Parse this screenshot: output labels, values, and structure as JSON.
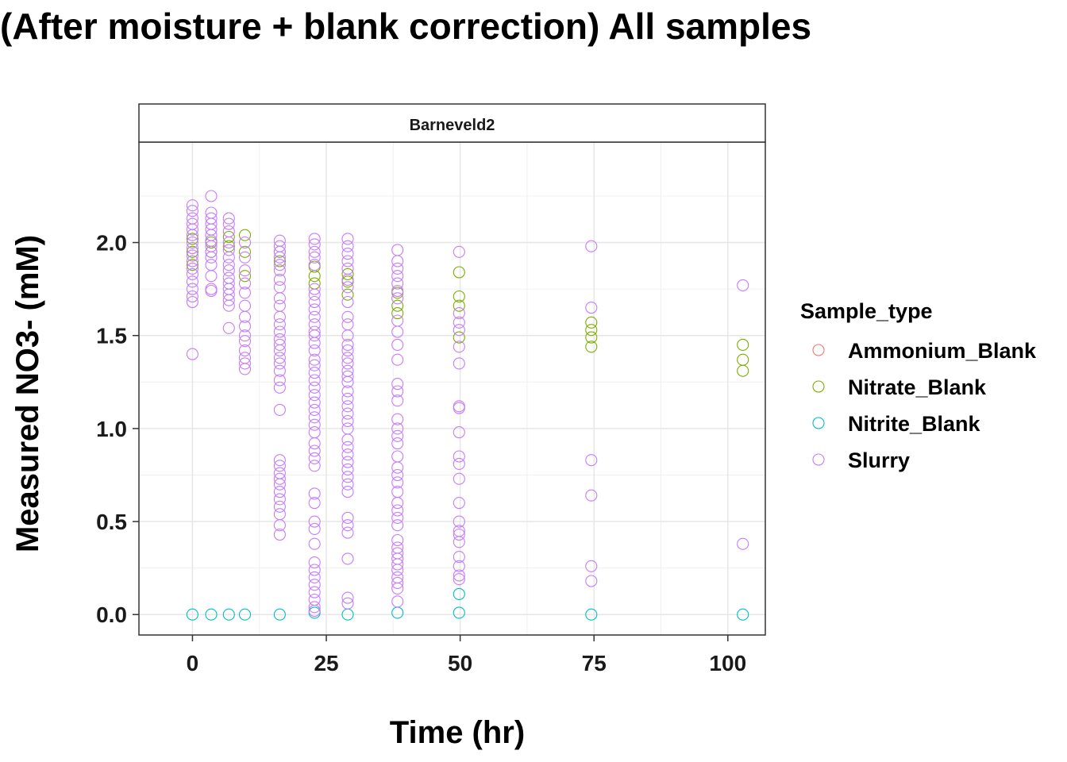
{
  "chart_data": {
    "type": "scatter",
    "title": "(After moisture + blank correction) All samples",
    "facet": "Barneveld2",
    "xlabel": "Time (hr)",
    "ylabel": "Measured NO3- (mM)",
    "xlim": [
      -10,
      107
    ],
    "ylim": [
      -0.11,
      2.54
    ],
    "xticks": [
      0,
      25,
      50,
      75,
      100
    ],
    "yticks": [
      0.0,
      0.5,
      1.0,
      1.5,
      2.0
    ],
    "xtick_labels": [
      "0",
      "25",
      "50",
      "75",
      "100"
    ],
    "ytick_labels": [
      "0.0",
      "0.5",
      "1.0",
      "1.5",
      "2.0"
    ],
    "grid": true,
    "legend_position": "right",
    "legend_title": "Sample_type",
    "series": [
      {
        "name": "Ammonium_Blank",
        "color": "#F8766D",
        "points": []
      },
      {
        "name": "Nitrate_Blank",
        "color": "#7CAE00",
        "points": [
          [
            0,
            1.88
          ],
          [
            0,
            1.95
          ],
          [
            0,
            2.02
          ],
          [
            3.5,
            1.95
          ],
          [
            3.5,
            2.0
          ],
          [
            6.8,
            1.98
          ],
          [
            6.8,
            2.03
          ],
          [
            9.8,
            2.04
          ],
          [
            9.8,
            1.95
          ],
          [
            9.8,
            1.82
          ],
          [
            16.3,
            1.9
          ],
          [
            16.3,
            1.95
          ],
          [
            22.8,
            1.82
          ],
          [
            22.8,
            1.78
          ],
          [
            22.8,
            1.87
          ],
          [
            29.0,
            1.83
          ],
          [
            29.0,
            1.79
          ],
          [
            29.0,
            1.72
          ],
          [
            38.3,
            1.73
          ],
          [
            38.3,
            1.66
          ],
          [
            38.3,
            1.62
          ],
          [
            49.8,
            1.84
          ],
          [
            49.8,
            1.71
          ],
          [
            49.8,
            1.66
          ],
          [
            49.8,
            1.49
          ],
          [
            74.5,
            1.57
          ],
          [
            74.5,
            1.53
          ],
          [
            74.5,
            1.49
          ],
          [
            74.5,
            1.44
          ],
          [
            102.8,
            1.45
          ],
          [
            102.8,
            1.37
          ],
          [
            102.8,
            1.31
          ]
        ]
      },
      {
        "name": "Nitrite_Blank",
        "color": "#00BFC4",
        "points": [
          [
            0,
            0.0
          ],
          [
            3.5,
            0.0
          ],
          [
            6.8,
            0.0
          ],
          [
            9.8,
            0.0
          ],
          [
            16.3,
            0.0
          ],
          [
            22.8,
            0.01
          ],
          [
            29.0,
            0.0
          ],
          [
            38.3,
            0.01
          ],
          [
            49.8,
            0.11
          ],
          [
            49.8,
            0.01
          ],
          [
            74.5,
            0.0
          ],
          [
            102.8,
            0.0
          ]
        ]
      },
      {
        "name": "Slurry",
        "color": "#C77CFF",
        "points": [
          [
            0,
            2.2
          ],
          [
            0,
            2.17
          ],
          [
            0,
            2.13
          ],
          [
            0,
            2.1
          ],
          [
            0,
            2.07
          ],
          [
            0,
            2.04
          ],
          [
            0,
            2.0
          ],
          [
            0,
            1.97
          ],
          [
            0,
            1.93
          ],
          [
            0,
            1.9
          ],
          [
            0,
            1.86
          ],
          [
            0,
            1.83
          ],
          [
            0,
            1.79
          ],
          [
            0,
            1.75
          ],
          [
            0,
            1.71
          ],
          [
            0,
            1.68
          ],
          [
            0,
            1.4
          ],
          [
            3.5,
            2.25
          ],
          [
            3.5,
            2.16
          ],
          [
            3.5,
            2.13
          ],
          [
            3.5,
            2.1
          ],
          [
            3.5,
            2.07
          ],
          [
            3.5,
            2.04
          ],
          [
            3.5,
            2.01
          ],
          [
            3.5,
            1.98
          ],
          [
            3.5,
            1.95
          ],
          [
            3.5,
            1.92
          ],
          [
            3.5,
            1.88
          ],
          [
            3.5,
            1.82
          ],
          [
            3.5,
            1.75
          ],
          [
            3.5,
            1.74
          ],
          [
            6.8,
            2.13
          ],
          [
            6.8,
            2.1
          ],
          [
            6.8,
            2.06
          ],
          [
            6.8,
            2.0
          ],
          [
            6.8,
            1.96
          ],
          [
            6.8,
            1.92
          ],
          [
            6.8,
            1.88
          ],
          [
            6.8,
            1.85
          ],
          [
            6.8,
            1.81
          ],
          [
            6.8,
            1.78
          ],
          [
            6.8,
            1.75
          ],
          [
            6.8,
            1.72
          ],
          [
            6.8,
            1.69
          ],
          [
            6.8,
            1.66
          ],
          [
            6.8,
            1.54
          ],
          [
            9.8,
            2.0
          ],
          [
            9.8,
            1.92
          ],
          [
            9.8,
            1.85
          ],
          [
            9.8,
            1.78
          ],
          [
            9.8,
            1.73
          ],
          [
            9.8,
            1.66
          ],
          [
            9.8,
            1.6
          ],
          [
            9.8,
            1.55
          ],
          [
            9.8,
            1.5
          ],
          [
            9.8,
            1.47
          ],
          [
            9.8,
            1.42
          ],
          [
            9.8,
            1.38
          ],
          [
            9.8,
            1.35
          ],
          [
            9.8,
            1.32
          ],
          [
            16.3,
            2.01
          ],
          [
            16.3,
            1.98
          ],
          [
            16.3,
            1.95
          ],
          [
            16.3,
            1.92
          ],
          [
            16.3,
            1.88
          ],
          [
            16.3,
            1.85
          ],
          [
            16.3,
            1.8
          ],
          [
            16.3,
            1.76
          ],
          [
            16.3,
            1.7
          ],
          [
            16.3,
            1.66
          ],
          [
            16.3,
            1.6
          ],
          [
            16.3,
            1.56
          ],
          [
            16.3,
            1.52
          ],
          [
            16.3,
            1.48
          ],
          [
            16.3,
            1.45
          ],
          [
            16.3,
            1.42
          ],
          [
            16.3,
            1.38
          ],
          [
            16.3,
            1.35
          ],
          [
            16.3,
            1.31
          ],
          [
            16.3,
            1.26
          ],
          [
            16.3,
            1.22
          ],
          [
            16.3,
            1.1
          ],
          [
            16.3,
            0.83
          ],
          [
            16.3,
            0.8
          ],
          [
            16.3,
            0.76
          ],
          [
            16.3,
            0.73
          ],
          [
            16.3,
            0.7
          ],
          [
            16.3,
            0.66
          ],
          [
            16.3,
            0.62
          ],
          [
            16.3,
            0.58
          ],
          [
            16.3,
            0.54
          ],
          [
            16.3,
            0.48
          ],
          [
            16.3,
            0.43
          ],
          [
            22.8,
            2.02
          ],
          [
            22.8,
            1.99
          ],
          [
            22.8,
            1.95
          ],
          [
            22.8,
            1.92
          ],
          [
            22.8,
            1.88
          ],
          [
            22.8,
            1.75
          ],
          [
            22.8,
            1.72
          ],
          [
            22.8,
            1.68
          ],
          [
            22.8,
            1.64
          ],
          [
            22.8,
            1.6
          ],
          [
            22.8,
            1.56
          ],
          [
            22.8,
            1.52
          ],
          [
            22.8,
            1.5
          ],
          [
            22.8,
            1.46
          ],
          [
            22.8,
            1.42
          ],
          [
            22.8,
            1.37
          ],
          [
            22.8,
            1.34
          ],
          [
            22.8,
            1.3
          ],
          [
            22.8,
            1.26
          ],
          [
            22.8,
            1.22
          ],
          [
            22.8,
            1.18
          ],
          [
            22.8,
            1.14
          ],
          [
            22.8,
            1.1
          ],
          [
            22.8,
            1.06
          ],
          [
            22.8,
            1.02
          ],
          [
            22.8,
            0.98
          ],
          [
            22.8,
            0.92
          ],
          [
            22.8,
            0.88
          ],
          [
            22.8,
            0.84
          ],
          [
            22.8,
            0.8
          ],
          [
            22.8,
            0.65
          ],
          [
            22.8,
            0.6
          ],
          [
            22.8,
            0.5
          ],
          [
            22.8,
            0.46
          ],
          [
            22.8,
            0.38
          ],
          [
            22.8,
            0.28
          ],
          [
            22.8,
            0.24
          ],
          [
            22.8,
            0.2
          ],
          [
            22.8,
            0.16
          ],
          [
            22.8,
            0.12
          ],
          [
            22.8,
            0.08
          ],
          [
            22.8,
            0.04
          ],
          [
            22.8,
            0.02
          ],
          [
            29.0,
            2.02
          ],
          [
            29.0,
            1.98
          ],
          [
            29.0,
            1.94
          ],
          [
            29.0,
            1.9
          ],
          [
            29.0,
            1.86
          ],
          [
            29.0,
            1.8
          ],
          [
            29.0,
            1.76
          ],
          [
            29.0,
            1.68
          ],
          [
            29.0,
            1.6
          ],
          [
            29.0,
            1.56
          ],
          [
            29.0,
            1.5
          ],
          [
            29.0,
            1.45
          ],
          [
            29.0,
            1.42
          ],
          [
            29.0,
            1.38
          ],
          [
            29.0,
            1.35
          ],
          [
            29.0,
            1.31
          ],
          [
            29.0,
            1.28
          ],
          [
            29.0,
            1.25
          ],
          [
            29.0,
            1.2
          ],
          [
            29.0,
            1.16
          ],
          [
            29.0,
            1.12
          ],
          [
            29.0,
            1.08
          ],
          [
            29.0,
            1.04
          ],
          [
            29.0,
            1.0
          ],
          [
            29.0,
            0.94
          ],
          [
            29.0,
            0.9
          ],
          [
            29.0,
            0.86
          ],
          [
            29.0,
            0.82
          ],
          [
            29.0,
            0.78
          ],
          [
            29.0,
            0.74
          ],
          [
            29.0,
            0.7
          ],
          [
            29.0,
            0.66
          ],
          [
            29.0,
            0.52
          ],
          [
            29.0,
            0.48
          ],
          [
            29.0,
            0.44
          ],
          [
            29.0,
            0.3
          ],
          [
            29.0,
            0.09
          ],
          [
            29.0,
            0.06
          ],
          [
            38.3,
            1.96
          ],
          [
            38.3,
            1.9
          ],
          [
            38.3,
            1.86
          ],
          [
            38.3,
            1.82
          ],
          [
            38.3,
            1.78
          ],
          [
            38.3,
            1.74
          ],
          [
            38.3,
            1.7
          ],
          [
            38.3,
            1.58
          ],
          [
            38.3,
            1.52
          ],
          [
            38.3,
            1.45
          ],
          [
            38.3,
            1.37
          ],
          [
            38.3,
            1.24
          ],
          [
            38.3,
            1.2
          ],
          [
            38.3,
            1.15
          ],
          [
            38.3,
            1.05
          ],
          [
            38.3,
            1.0
          ],
          [
            38.3,
            0.96
          ],
          [
            38.3,
            0.92
          ],
          [
            38.3,
            0.85
          ],
          [
            38.3,
            0.79
          ],
          [
            38.3,
            0.75
          ],
          [
            38.3,
            0.71
          ],
          [
            38.3,
            0.66
          ],
          [
            38.3,
            0.6
          ],
          [
            38.3,
            0.56
          ],
          [
            38.3,
            0.52
          ],
          [
            38.3,
            0.48
          ],
          [
            38.3,
            0.4
          ],
          [
            38.3,
            0.36
          ],
          [
            38.3,
            0.33
          ],
          [
            38.3,
            0.3
          ],
          [
            38.3,
            0.27
          ],
          [
            38.3,
            0.24
          ],
          [
            38.3,
            0.2
          ],
          [
            38.3,
            0.17
          ],
          [
            38.3,
            0.14
          ],
          [
            38.3,
            0.07
          ],
          [
            49.8,
            1.95
          ],
          [
            49.8,
            1.62
          ],
          [
            49.8,
            1.57
          ],
          [
            49.8,
            1.53
          ],
          [
            49.8,
            1.44
          ],
          [
            49.8,
            1.35
          ],
          [
            49.8,
            1.12
          ],
          [
            49.8,
            1.11
          ],
          [
            49.8,
            0.98
          ],
          [
            49.8,
            0.85
          ],
          [
            49.8,
            0.81
          ],
          [
            49.8,
            0.73
          ],
          [
            49.8,
            0.6
          ],
          [
            49.8,
            0.5
          ],
          [
            49.8,
            0.45
          ],
          [
            49.8,
            0.43
          ],
          [
            49.8,
            0.39
          ],
          [
            49.8,
            0.31
          ],
          [
            49.8,
            0.26
          ],
          [
            49.8,
            0.21
          ],
          [
            49.8,
            0.19
          ],
          [
            74.5,
            1.98
          ],
          [
            74.5,
            1.65
          ],
          [
            74.5,
            0.83
          ],
          [
            74.5,
            0.64
          ],
          [
            74.5,
            0.26
          ],
          [
            74.5,
            0.18
          ],
          [
            102.8,
            1.77
          ],
          [
            102.8,
            0.38
          ]
        ]
      }
    ]
  }
}
